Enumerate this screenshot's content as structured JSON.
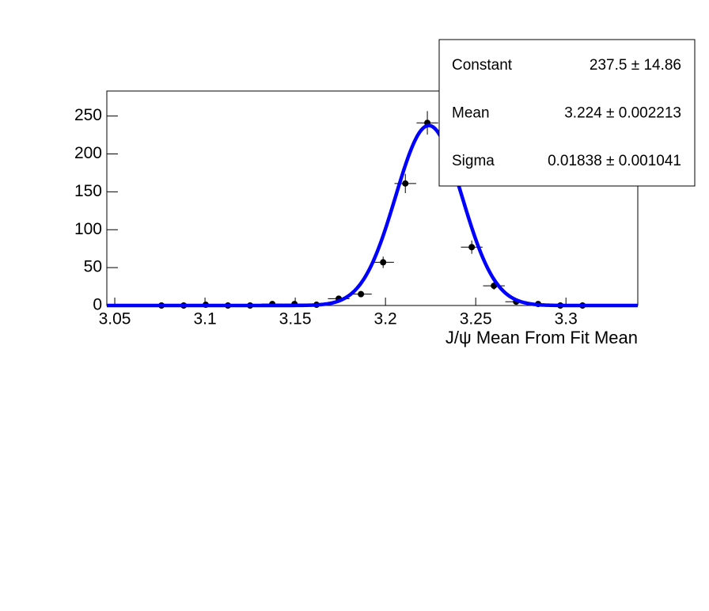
{
  "chart_data": {
    "type": "histogram-fit",
    "x_label": "J/ψ Mean From Fit Mean",
    "x": [
      3.0759,
      3.0882,
      3.1004,
      3.1127,
      3.125,
      3.1373,
      3.1496,
      3.1618,
      3.1741,
      3.1864,
      3.1987,
      3.211,
      3.2232,
      3.2355,
      3.2478,
      3.2601,
      3.2724,
      3.2846,
      3.2969,
      3.3092
    ],
    "values": [
      0,
      0,
      1,
      0,
      0,
      2,
      2,
      1,
      9,
      15,
      57,
      161,
      241,
      191,
      77,
      26,
      5,
      2,
      0,
      0
    ],
    "errors": [
      0,
      0,
      1,
      0,
      0,
      1.4,
      1.4,
      1,
      3,
      3.9,
      7.5,
      12.7,
      15.5,
      13.8,
      8.8,
      5.1,
      2.2,
      1.4,
      0,
      0
    ],
    "xerr": 0.006,
    "color": "#000000",
    "xlim": [
      3.0456,
      3.3398
    ],
    "ylim": [
      0,
      283
    ],
    "xticks": [
      3.05,
      3.1,
      3.15,
      3.2,
      3.25,
      3.3
    ],
    "yticks": [
      0,
      50,
      100,
      150,
      200,
      250
    ],
    "fit": {
      "color": "#0000ff",
      "params": [
        {
          "name": "Constant",
          "value": 237.5,
          "error": 14.86,
          "value_label": "237.5 ± 14.86"
        },
        {
          "name": "Mean",
          "value": 3.224,
          "error": 0.002213,
          "value_label": "3.224 ± 0.002213"
        },
        {
          "name": "Sigma",
          "value": 0.01838,
          "error": 0.001041,
          "value_label": "0.01838 ± 0.001041"
        }
      ]
    }
  }
}
